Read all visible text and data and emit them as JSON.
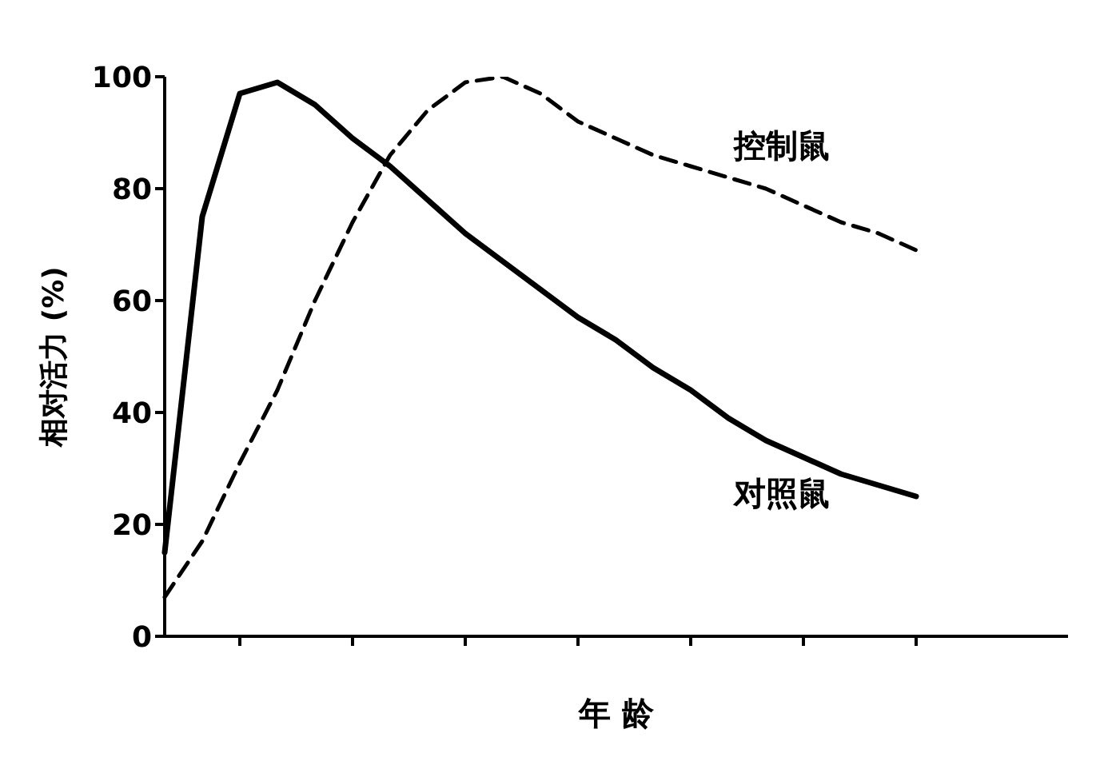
{
  "chart_data": {
    "type": "line",
    "xlabel": "年 龄",
    "ylabel": "相对活力 (%)",
    "categories": [
      null,
      null,
      null,
      null,
      null,
      null,
      null,
      null,
      null,
      null,
      null,
      null,
      null,
      null,
      null,
      null,
      null,
      null,
      null,
      null,
      null
    ],
    "series": [
      {
        "name": "控制鼠",
        "color": "#000000",
        "line_style": "dashed",
        "values": [
          7,
          17,
          31,
          44,
          60,
          74,
          86,
          94,
          99,
          100,
          97,
          92,
          89,
          86,
          84,
          82,
          80,
          77,
          74,
          72,
          69
        ]
      },
      {
        "name": "对照鼠",
        "color": "#000000",
        "line_style": "solid",
        "values": [
          15,
          75,
          97,
          99,
          95,
          89,
          84,
          78,
          72,
          67,
          62,
          57,
          53,
          48,
          44,
          39,
          35,
          32,
          29,
          27,
          25
        ]
      }
    ],
    "ylim": [
      0,
      100
    ],
    "yticks": [
      0,
      20,
      40,
      60,
      80,
      100
    ],
    "tick_labels": "y",
    "grid": false,
    "legend": false,
    "marker": "none"
  }
}
